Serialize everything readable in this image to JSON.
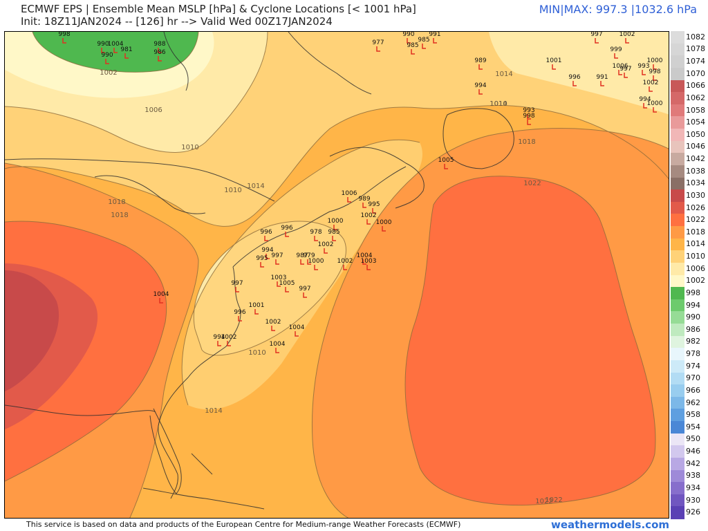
{
  "header": {
    "title_line1": "ECMWF EPS | Ensemble Mean MSLP [hPa] & Cyclone Locations [< 1001 hPa]",
    "title_line2": "Init: 18Z11JAN2024 -- [126] hr --> Valid Wed 00Z17JAN2024",
    "minmax": "MIN|MAX: 997.3 |1032.6 hPa"
  },
  "footer": {
    "credit": "This service is based on data and products of the European Centre for Medium-range Weather Forecasts (ECMWF)",
    "brand": "weathermodels.com"
  },
  "colors": {
    "land_line": "#3a3a3a",
    "cyclone_marker": "#e03020",
    "contour_label": "#6b5a40"
  },
  "colorbar": [
    {
      "label": "1082",
      "color": "#dcdcdc"
    },
    {
      "label": "1078",
      "color": "#d6d6d6"
    },
    {
      "label": "1074",
      "color": "#d0d0d0"
    },
    {
      "label": "1070",
      "color": "#cacaca"
    },
    {
      "label": "1066",
      "color": "#c85858"
    },
    {
      "label": "1062",
      "color": "#d56868"
    },
    {
      "label": "1058",
      "color": "#e07a7a"
    },
    {
      "label": "1054",
      "color": "#e99a9a"
    },
    {
      "label": "1050",
      "color": "#f1b7b7"
    },
    {
      "label": "1046",
      "color": "#e8c4bc"
    },
    {
      "label": "1042",
      "color": "#c8aaa0"
    },
    {
      "label": "1038",
      "color": "#a68a80"
    },
    {
      "label": "1034",
      "color": "#8a6f66"
    },
    {
      "label": "1030",
      "color": "#c84a4a"
    },
    {
      "label": "1026",
      "color": "#e25a4a"
    },
    {
      "label": "1022",
      "color": "#ff7040"
    },
    {
      "label": "1018",
      "color": "#ff9a45"
    },
    {
      "label": "1014",
      "color": "#ffb548"
    },
    {
      "label": "1010",
      "color": "#ffd278"
    },
    {
      "label": "1006",
      "color": "#ffeaa8"
    },
    {
      "label": "1002",
      "color": "#fff8c8"
    },
    {
      "label": "998",
      "color": "#4fb84f"
    },
    {
      "label": "994",
      "color": "#6dcb6d"
    },
    {
      "label": "990",
      "color": "#96dc96"
    },
    {
      "label": "986",
      "color": "#bfeabf"
    },
    {
      "label": "982",
      "color": "#dff4df"
    },
    {
      "label": "978",
      "color": "#e8f6fc"
    },
    {
      "label": "974",
      "color": "#cdeaf8"
    },
    {
      "label": "970",
      "color": "#b2dcf4"
    },
    {
      "label": "966",
      "color": "#98cdef"
    },
    {
      "label": "962",
      "color": "#7cb8e8"
    },
    {
      "label": "958",
      "color": "#5e9fe0"
    },
    {
      "label": "954",
      "color": "#4a87d6"
    },
    {
      "label": "950",
      "color": "#ebe6f6"
    },
    {
      "label": "946",
      "color": "#d2c8ee"
    },
    {
      "label": "942",
      "color": "#b8a8e4"
    },
    {
      "label": "938",
      "color": "#9e8ad8"
    },
    {
      "label": "934",
      "color": "#876ecc"
    },
    {
      "label": "930",
      "color": "#7056c0"
    },
    {
      "label": "926",
      "color": "#5a40b4"
    }
  ],
  "contour_labels": [
    "1002",
    "1006",
    "1010",
    "1010",
    "1014",
    "1014",
    "1018",
    "1018",
    "1022",
    "1022",
    "1022",
    "1010",
    "1014",
    "1010",
    "1014",
    "1018"
  ],
  "cyclones": [
    {
      "label": "998"
    },
    {
      "label": "990"
    },
    {
      "label": "1004"
    },
    {
      "label": "981"
    },
    {
      "label": "990"
    },
    {
      "label": "988"
    },
    {
      "label": "986"
    },
    {
      "label": "977"
    },
    {
      "label": "990"
    },
    {
      "label": "985"
    },
    {
      "label": "991"
    },
    {
      "label": "985"
    },
    {
      "label": "989"
    },
    {
      "label": "994"
    },
    {
      "label": "997"
    },
    {
      "label": "1002"
    },
    {
      "label": "999"
    },
    {
      "label": "1001"
    },
    {
      "label": "996"
    },
    {
      "label": "991"
    },
    {
      "label": "1006"
    },
    {
      "label": "997"
    },
    {
      "label": "993"
    },
    {
      "label": "1000"
    },
    {
      "label": "998"
    },
    {
      "label": "1002"
    },
    {
      "label": "994"
    },
    {
      "label": "1000"
    },
    {
      "label": "993"
    },
    {
      "label": "998"
    },
    {
      "label": "1005"
    },
    {
      "label": "1006"
    },
    {
      "label": "989"
    },
    {
      "label": "995"
    },
    {
      "label": "1002"
    },
    {
      "label": "1000"
    },
    {
      "label": "1000"
    },
    {
      "label": "978"
    },
    {
      "label": "985"
    },
    {
      "label": "1002"
    },
    {
      "label": "996"
    },
    {
      "label": "996"
    },
    {
      "label": "994"
    },
    {
      "label": "995"
    },
    {
      "label": "997"
    },
    {
      "label": "987"
    },
    {
      "label": "979"
    },
    {
      "label": "1000"
    },
    {
      "label": "1002"
    },
    {
      "label": "1004"
    },
    {
      "label": "1003"
    },
    {
      "label": "1003"
    },
    {
      "label": "1005"
    },
    {
      "label": "997"
    },
    {
      "label": "997"
    },
    {
      "label": "1004"
    },
    {
      "label": "1001"
    },
    {
      "label": "996"
    },
    {
      "label": "1002"
    },
    {
      "label": "1004"
    },
    {
      "label": "994"
    },
    {
      "label": "1002"
    },
    {
      "label": "1004"
    }
  ]
}
